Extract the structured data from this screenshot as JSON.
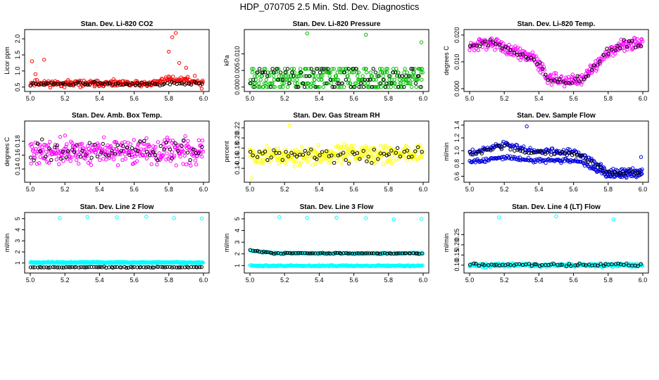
{
  "title": "HDP_070705  2.5 Min. Std. Dev. Diagnostics",
  "chart_data": [
    {
      "type": "scatter",
      "title": "Stan. Dev. Li-820 CO2",
      "ylabel": "Licor ppm",
      "color": "#ff0000",
      "xlim": [
        5.0,
        6.0
      ],
      "ylim": [
        0.45,
        2.2
      ],
      "xticks": [
        "5.0",
        "5.2",
        "5.4",
        "5.6",
        "5.8",
        "6.0"
      ],
      "yticks": [
        {
          "value": 0.5,
          "label": "0.5"
        },
        {
          "value": 1.0,
          "label": "1.0"
        },
        {
          "value": 1.5,
          "label": "1.5"
        },
        {
          "value": 2.0,
          "label": "2.0"
        }
      ],
      "outliers": [
        [
          5.01,
          1.3
        ],
        [
          5.03,
          0.9
        ],
        [
          5.08,
          1.35
        ],
        [
          5.8,
          1.6
        ],
        [
          5.82,
          2.05
        ],
        [
          5.84,
          2.18
        ],
        [
          5.86,
          1.25
        ],
        [
          5.9,
          1.1
        ],
        [
          5.95,
          0.85
        ],
        [
          5.99,
          0.45
        ]
      ],
      "series": [
        {
          "name": "main",
          "color": "#ff0000",
          "baseline": [
            [
              5.0,
              0.62
            ],
            [
              5.7,
              0.6
            ],
            [
              5.8,
              0.75
            ],
            [
              6.0,
              0.65
            ]
          ],
          "spread": 0.09,
          "count": 260,
          "seed": 11
        },
        {
          "name": "secondary",
          "color": "#000000",
          "baseline": [
            [
              5.0,
              0.6
            ],
            [
              6.0,
              0.6
            ]
          ],
          "spread": 0.05,
          "count": 70,
          "seed": 12
        }
      ]
    },
    {
      "type": "scatter",
      "title": "Stan. Dev. Li-820 Pressure",
      "ylabel": "kPa",
      "color": "#00bb00",
      "xlim": [
        5.0,
        6.0
      ],
      "ylim": [
        -0.0005,
        0.0165
      ],
      "xticks": [
        "5.0",
        "5.2",
        "5.4",
        "5.6",
        "5.8",
        "6.0"
      ],
      "yticks": [
        {
          "value": 0.0,
          "label": "0.000"
        },
        {
          "value": 0.005,
          "label": "0.005"
        },
        {
          "value": 0.01,
          "label": "0.010"
        }
      ],
      "outliers": [
        [
          5.33,
          0.0162
        ],
        [
          5.67,
          0.0158
        ],
        [
          5.99,
          0.0135
        ]
      ],
      "series": [
        {
          "name": "main",
          "color": "#00bb00",
          "levels": [
            0.0,
            0.0011,
            0.0022,
            0.0033,
            0.0044,
            0.0055
          ],
          "count": 300,
          "seed": 21
        },
        {
          "name": "secondary",
          "color": "#000000",
          "levels": [
            0.0,
            0.0011,
            0.0022,
            0.0033,
            0.0044,
            0.0055
          ],
          "count": 80,
          "seed": 22
        }
      ]
    },
    {
      "type": "scatter",
      "title": "Stan. Dev. Li-820 Temp.",
      "ylabel": "degrees C",
      "color": "#ff00ff",
      "xlim": [
        5.0,
        6.0
      ],
      "ylim": [
        0.0,
        0.021
      ],
      "xticks": [
        "5.0",
        "5.2",
        "5.4",
        "5.6",
        "5.8",
        "6.0"
      ],
      "yticks": [
        {
          "value": 0.0,
          "label": "0.000"
        },
        {
          "value": 0.01,
          "label": "0.010"
        },
        {
          "value": 0.02,
          "label": "0.020"
        }
      ],
      "outliers": [],
      "series": [
        {
          "name": "main",
          "color": "#ff00ff",
          "baseline": [
            [
              5.0,
              0.0155
            ],
            [
              5.12,
              0.0175
            ],
            [
              5.25,
              0.014
            ],
            [
              5.38,
              0.011
            ],
            [
              5.45,
              0.0045
            ],
            [
              5.55,
              0.003
            ],
            [
              5.65,
              0.0035
            ],
            [
              5.72,
              0.008
            ],
            [
              5.8,
              0.014
            ],
            [
              5.9,
              0.017
            ],
            [
              6.0,
              0.0165
            ]
          ],
          "spread": 0.002,
          "count": 300,
          "seed": 31
        },
        {
          "name": "secondary",
          "color": "#000000",
          "baseline": [
            [
              5.0,
              0.0155
            ],
            [
              5.12,
              0.0175
            ],
            [
              5.25,
              0.014
            ],
            [
              5.38,
              0.011
            ],
            [
              5.45,
              0.0045
            ],
            [
              5.55,
              0.003
            ],
            [
              5.65,
              0.0035
            ],
            [
              5.72,
              0.008
            ],
            [
              5.8,
              0.014
            ],
            [
              5.9,
              0.017
            ],
            [
              6.0,
              0.0165
            ]
          ],
          "spread": 0.0015,
          "count": 60,
          "seed": 32
        }
      ]
    },
    {
      "type": "scatter",
      "title": "Stan. Dev. Amb. Box Temp.",
      "ylabel": "degrees C",
      "color": "#ff00ff",
      "xlim": [
        5.0,
        6.0
      ],
      "ylim": [
        0.125,
        0.205
      ],
      "xticks": [
        "5.0",
        "5.2",
        "5.4",
        "5.6",
        "5.8",
        "6.0"
      ],
      "yticks": [
        {
          "value": 0.14,
          "label": "0.14"
        },
        {
          "value": 0.16,
          "label": "0.16"
        },
        {
          "value": 0.18,
          "label": "0.18"
        }
      ],
      "outliers": [],
      "series": [
        {
          "name": "main",
          "color": "#ff00ff",
          "baseline": [
            [
              5.0,
              0.165
            ],
            [
              6.0,
              0.165
            ]
          ],
          "spread": 0.016,
          "count": 320,
          "seed": 41
        },
        {
          "name": "secondary",
          "color": "#000000",
          "baseline": [
            [
              5.0,
              0.165
            ],
            [
              6.0,
              0.167
            ]
          ],
          "spread": 0.013,
          "count": 60,
          "seed": 42
        }
      ]
    },
    {
      "type": "scatter",
      "title": "Stan. Dev. Gas Stream RH",
      "ylabel": "percent",
      "color": "#ffff00",
      "xlim": [
        5.0,
        6.0
      ],
      "ylim": [
        0.118,
        0.228
      ],
      "xticks": [
        "5.0",
        "5.2",
        "5.4",
        "5.6",
        "5.8",
        "6.0"
      ],
      "yticks": [
        {
          "value": 0.14,
          "label": "0.14"
        },
        {
          "value": 0.16,
          "label": "0.16"
        },
        {
          "value": 0.18,
          "label": "0.18"
        },
        {
          "value": 0.2,
          "label": "0.20"
        },
        {
          "value": 0.22,
          "label": "0.22"
        }
      ],
      "outliers": [
        [
          5.01,
          0.12
        ],
        [
          5.23,
          0.225
        ]
      ],
      "series": [
        {
          "name": "main",
          "color": "#ffff00",
          "baseline": [
            [
              5.0,
              0.165
            ],
            [
              6.0,
              0.168
            ]
          ],
          "spread": 0.016,
          "count": 320,
          "seed": 51
        },
        {
          "name": "secondary",
          "color": "#000000",
          "baseline": [
            [
              5.0,
              0.165
            ],
            [
              6.0,
              0.17
            ]
          ],
          "spread": 0.014,
          "count": 60,
          "seed": 52
        }
      ]
    },
    {
      "type": "scatter",
      "title": "Stan. Dev. Sample Flow",
      "ylabel": "ml/min",
      "color": "#0000dd",
      "xlim": [
        5.0,
        6.0
      ],
      "ylim": [
        0.55,
        1.42
      ],
      "xticks": [
        "5.0",
        "5.2",
        "5.4",
        "5.6",
        "5.8",
        "6.0"
      ],
      "yticks": [
        {
          "value": 0.6,
          "label": "0.6"
        },
        {
          "value": 0.8,
          "label": "0.8"
        },
        {
          "value": 1.0,
          "label": "1.0"
        },
        {
          "value": 1.2,
          "label": "1.2"
        },
        {
          "value": 1.4,
          "label": "1.4"
        }
      ],
      "outliers": [
        [
          5.33,
          1.38
        ],
        [
          5.52,
          0.85
        ],
        [
          5.99,
          0.9
        ]
      ],
      "series": [
        {
          "name": "upper",
          "color": "#0000dd",
          "baseline": [
            [
              5.0,
              0.95
            ],
            [
              5.2,
              1.1
            ],
            [
              5.35,
              1.0
            ],
            [
              5.6,
              0.98
            ],
            [
              5.7,
              0.85
            ],
            [
              5.8,
              0.68
            ],
            [
              6.0,
              0.68
            ]
          ],
          "spread": 0.04,
          "count": 180,
          "seed": 61
        },
        {
          "name": "lower",
          "color": "#0000dd",
          "baseline": [
            [
              5.0,
              0.82
            ],
            [
              5.2,
              0.9
            ],
            [
              5.35,
              0.85
            ],
            [
              5.6,
              0.85
            ],
            [
              5.7,
              0.75
            ],
            [
              5.8,
              0.6
            ],
            [
              6.0,
              0.62
            ]
          ],
          "spread": 0.03,
          "count": 180,
          "seed": 62
        },
        {
          "name": "secondary",
          "color": "#000000",
          "baseline": [
            [
              5.0,
              0.92
            ],
            [
              5.2,
              1.08
            ],
            [
              5.35,
              0.98
            ],
            [
              5.6,
              0.95
            ],
            [
              5.7,
              0.82
            ],
            [
              5.8,
              0.66
            ],
            [
              6.0,
              0.66
            ]
          ],
          "spread": 0.035,
          "count": 60,
          "seed": 63
        }
      ]
    },
    {
      "type": "scatter",
      "title": "Stan. Dev. Line 2 Flow",
      "ylabel": "ml/min",
      "color": "#00ffff",
      "xlim": [
        5.0,
        6.0
      ],
      "ylim": [
        0.35,
        5.3
      ],
      "xticks": [
        "5.0",
        "5.2",
        "5.4",
        "5.6",
        "5.8",
        "6.0"
      ],
      "yticks": [
        {
          "value": 1,
          "label": "1"
        },
        {
          "value": 2,
          "label": "2"
        },
        {
          "value": 3,
          "label": "3"
        },
        {
          "value": 4,
          "label": "4"
        },
        {
          "value": 5,
          "label": "5"
        }
      ],
      "outliers": [
        [
          5.17,
          5.05
        ],
        [
          5.33,
          5.15
        ],
        [
          5.5,
          5.12
        ],
        [
          5.67,
          5.18
        ],
        [
          5.83,
          5.05
        ],
        [
          5.99,
          5.02
        ]
      ],
      "series": [
        {
          "name": "main",
          "color": "#00ffff",
          "baseline": [
            [
              5.0,
              1.05
            ],
            [
              6.0,
              1.05
            ]
          ],
          "spread": 0.06,
          "count": 320,
          "seed": 71
        },
        {
          "name": "secondary",
          "color": "#000000",
          "baseline": [
            [
              5.0,
              0.62
            ],
            [
              6.0,
              0.62
            ]
          ],
          "spread": 0.04,
          "count": 80,
          "seed": 72
        }
      ]
    },
    {
      "type": "scatter",
      "title": "Stan. Dev. Line 3 Flow",
      "ylabel": "ml/min",
      "color": "#00ffff",
      "xlim": [
        5.0,
        6.0
      ],
      "ylim": [
        0.6,
        5.3
      ],
      "xticks": [
        "5.0",
        "5.2",
        "5.4",
        "5.6",
        "5.8",
        "6.0"
      ],
      "yticks": [
        {
          "value": 1,
          "label": "1"
        },
        {
          "value": 2,
          "label": "2"
        },
        {
          "value": 3,
          "label": "3"
        },
        {
          "value": 4,
          "label": "4"
        },
        {
          "value": 5,
          "label": "5"
        }
      ],
      "outliers": [
        [
          5.17,
          5.15
        ],
        [
          5.33,
          5.08
        ],
        [
          5.5,
          5.1
        ],
        [
          5.67,
          5.05
        ],
        [
          5.83,
          4.95
        ],
        [
          5.99,
          5.0
        ]
      ],
      "series": [
        {
          "name": "upper",
          "color": "#00ffff",
          "baseline": [
            [
              5.0,
              2.3
            ],
            [
              5.15,
              2.05
            ],
            [
              6.0,
              2.05
            ]
          ],
          "spread": 0.06,
          "count": 200,
          "seed": 81
        },
        {
          "name": "lower",
          "color": "#00ffff",
          "baseline": [
            [
              5.0,
              0.98
            ],
            [
              6.0,
              0.98
            ]
          ],
          "spread": 0.05,
          "count": 220,
          "seed": 82
        },
        {
          "name": "secondary",
          "color": "#000000",
          "baseline": [
            [
              5.0,
              2.3
            ],
            [
              5.15,
              2.05
            ],
            [
              6.0,
              2.05
            ]
          ],
          "spread": 0.05,
          "count": 80,
          "seed": 83
        }
      ]
    },
    {
      "type": "scatter",
      "title": "Stan. Dev. Line 4 (LT) Flow",
      "ylabel": "ml/min",
      "color": "#00ffff",
      "xlim": [
        5.0,
        6.0
      ],
      "ylim": [
        0.075,
        0.345
      ],
      "xticks": [
        "5.0",
        "5.2",
        "5.4",
        "5.6",
        "5.8",
        "6.0"
      ],
      "yticks": [
        {
          "value": 0.1,
          "label": "0.10"
        },
        {
          "value": 0.15,
          "label": "0.15"
        },
        {
          "value": 0.2,
          "label": "0.20"
        },
        {
          "value": 0.25,
          "label": "0.25"
        }
      ],
      "outliers": [
        [
          5.17,
          0.335
        ],
        [
          5.5,
          0.34
        ],
        [
          5.83,
          0.325
        ]
      ],
      "series": [
        {
          "name": "main",
          "color": "#00ffff",
          "baseline": [
            [
              5.0,
              0.1
            ],
            [
              6.0,
              0.1
            ]
          ],
          "spread": 0.008,
          "count": 320,
          "seed": 91
        },
        {
          "name": "secondary",
          "color": "#000000",
          "baseline": [
            [
              5.0,
              0.102
            ],
            [
              6.0,
              0.102
            ]
          ],
          "spread": 0.007,
          "count": 60,
          "seed": 92
        }
      ]
    }
  ]
}
